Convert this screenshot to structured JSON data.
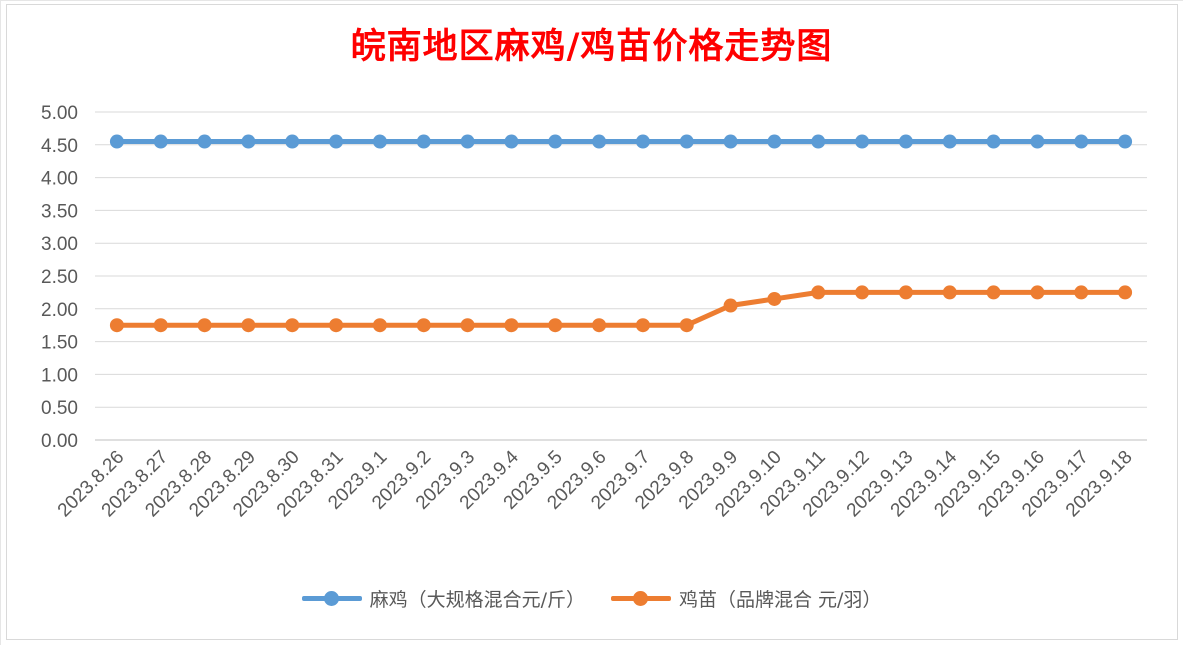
{
  "chart_data": {
    "type": "line",
    "title": "皖南地区麻鸡/鸡苗价格走势图",
    "categories": [
      "2023.8.26",
      "2023.8.27",
      "2023.8.28",
      "2023.8.29",
      "2023.8.30",
      "2023.8.31",
      "2023.9.1",
      "2023.9.2",
      "2023.9.3",
      "2023.9.4",
      "2023.9.5",
      "2023.9.6",
      "2023.9.7",
      "2023.9.8",
      "2023.9.9",
      "2023.9.10",
      "2023.9.11",
      "2023.9.12",
      "2023.9.13",
      "2023.9.14",
      "2023.9.15",
      "2023.9.16",
      "2023.9.17",
      "2023.9.18"
    ],
    "series": [
      {
        "name": "麻鸡（大规格混合元/斤）",
        "color": "#5b9bd5",
        "values": [
          4.55,
          4.55,
          4.55,
          4.55,
          4.55,
          4.55,
          4.55,
          4.55,
          4.55,
          4.55,
          4.55,
          4.55,
          4.55,
          4.55,
          4.55,
          4.55,
          4.55,
          4.55,
          4.55,
          4.55,
          4.55,
          4.55,
          4.55,
          4.55
        ]
      },
      {
        "name": "鸡苗（品牌混合 元/羽）",
        "color": "#ed7d31",
        "values": [
          1.75,
          1.75,
          1.75,
          1.75,
          1.75,
          1.75,
          1.75,
          1.75,
          1.75,
          1.75,
          1.75,
          1.75,
          1.75,
          1.75,
          2.05,
          2.15,
          2.25,
          2.25,
          2.25,
          2.25,
          2.25,
          2.25,
          2.25,
          2.25
        ]
      }
    ],
    "yticks": [
      "0.00",
      "0.50",
      "1.00",
      "1.50",
      "2.00",
      "2.50",
      "3.00",
      "3.50",
      "4.00",
      "4.50",
      "5.00"
    ],
    "ylim": [
      0,
      5
    ],
    "grid": true,
    "legend": "bottom"
  }
}
